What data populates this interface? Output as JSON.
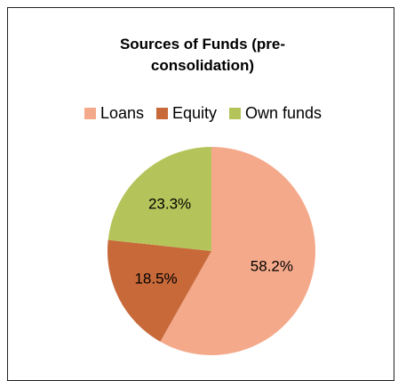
{
  "chart_data": {
    "type": "pie",
    "title": "Sources of Funds (pre-consolidation)",
    "categories": [
      "Loans",
      "Equity",
      "Own funds"
    ],
    "values": [
      58.2,
      18.5,
      23.3
    ],
    "value_labels": [
      "58.2%",
      "18.5%",
      "23.3%"
    ],
    "colors": [
      "#f4a98a",
      "#c8693a",
      "#b5c45a"
    ],
    "legend": "top"
  }
}
